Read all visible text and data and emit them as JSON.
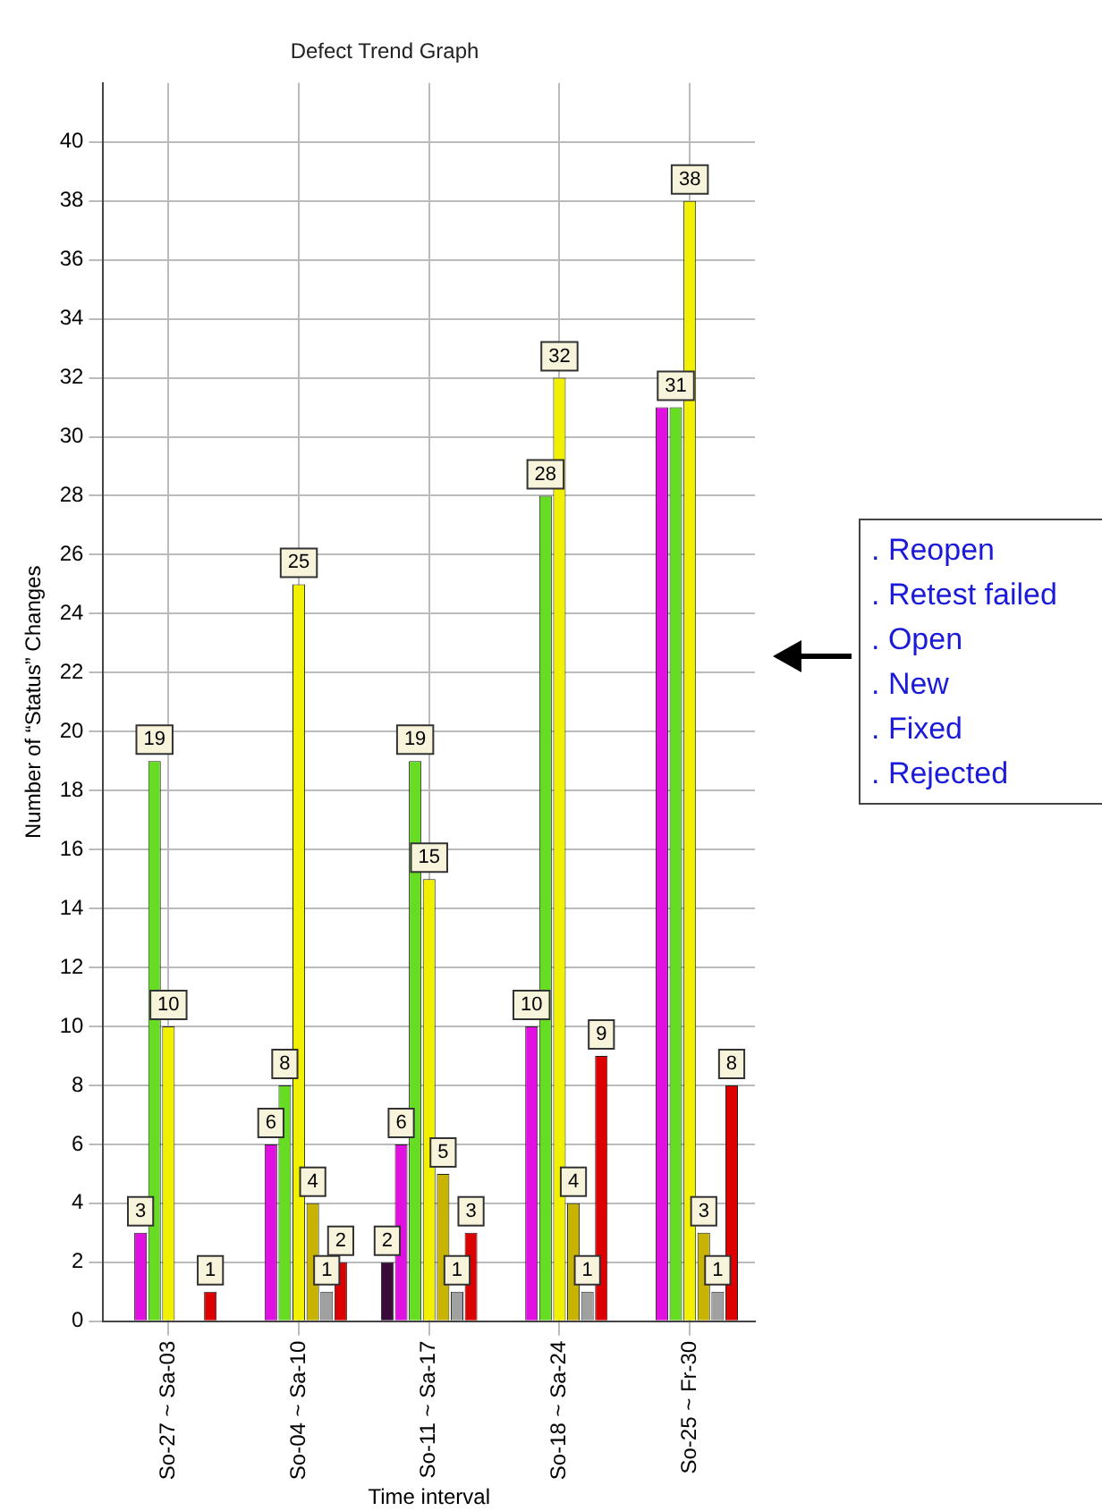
{
  "chart_data": {
    "type": "bar",
    "title": "Defect Trend Graph",
    "xlabel": "Time interval",
    "ylabel": "Number of “Status” Changes",
    "categories": [
      "So-27 ~ Sa-03",
      "So-04 ~ Sa-10",
      "So-11 ~ Sa-17",
      "So-18 ~ Sa-24",
      "So-25 ~ Fr-30"
    ],
    "series": [
      {
        "color": "#3a0a3a",
        "values": [
          0,
          0,
          2,
          0,
          0
        ],
        "value_labels": [
          null,
          null,
          "2",
          null,
          null
        ]
      },
      {
        "color": "#e010e0",
        "values": [
          3,
          6,
          6,
          10,
          31
        ],
        "value_labels": [
          "3",
          "6",
          "6",
          "10",
          null
        ]
      },
      {
        "color": "#66dd22",
        "values": [
          19,
          8,
          19,
          28,
          31
        ],
        "value_labels": [
          "19",
          "8",
          "19",
          "28",
          "31"
        ]
      },
      {
        "color": "#f0f000",
        "values": [
          10,
          25,
          15,
          32,
          38
        ],
        "value_labels": [
          "10",
          "25",
          "15",
          "32",
          "38"
        ]
      },
      {
        "color": "#c8b400",
        "values": [
          0,
          4,
          5,
          4,
          3
        ],
        "value_labels": [
          null,
          "4",
          "5",
          "4",
          "3"
        ]
      },
      {
        "color": "#a0a0a0",
        "values": [
          0,
          1,
          1,
          1,
          1
        ],
        "value_labels": [
          null,
          "1",
          "1",
          "1",
          "1"
        ]
      },
      {
        "color": "#dd0000",
        "values": [
          1,
          2,
          3,
          9,
          8
        ],
        "value_labels": [
          "1",
          "2",
          "3",
          "9",
          "8"
        ]
      }
    ],
    "ylim": [
      0,
      42
    ],
    "yticks": [
      0,
      2,
      4,
      6,
      8,
      10,
      12,
      14,
      16,
      18,
      20,
      22,
      24,
      26,
      28,
      30,
      32,
      34,
      36,
      38,
      40
    ],
    "grid": true,
    "annotations": [
      ". Reopen",
      ". Retest failed",
      ". Open",
      ". New",
      ". Fixed",
      ". Rejected"
    ]
  }
}
